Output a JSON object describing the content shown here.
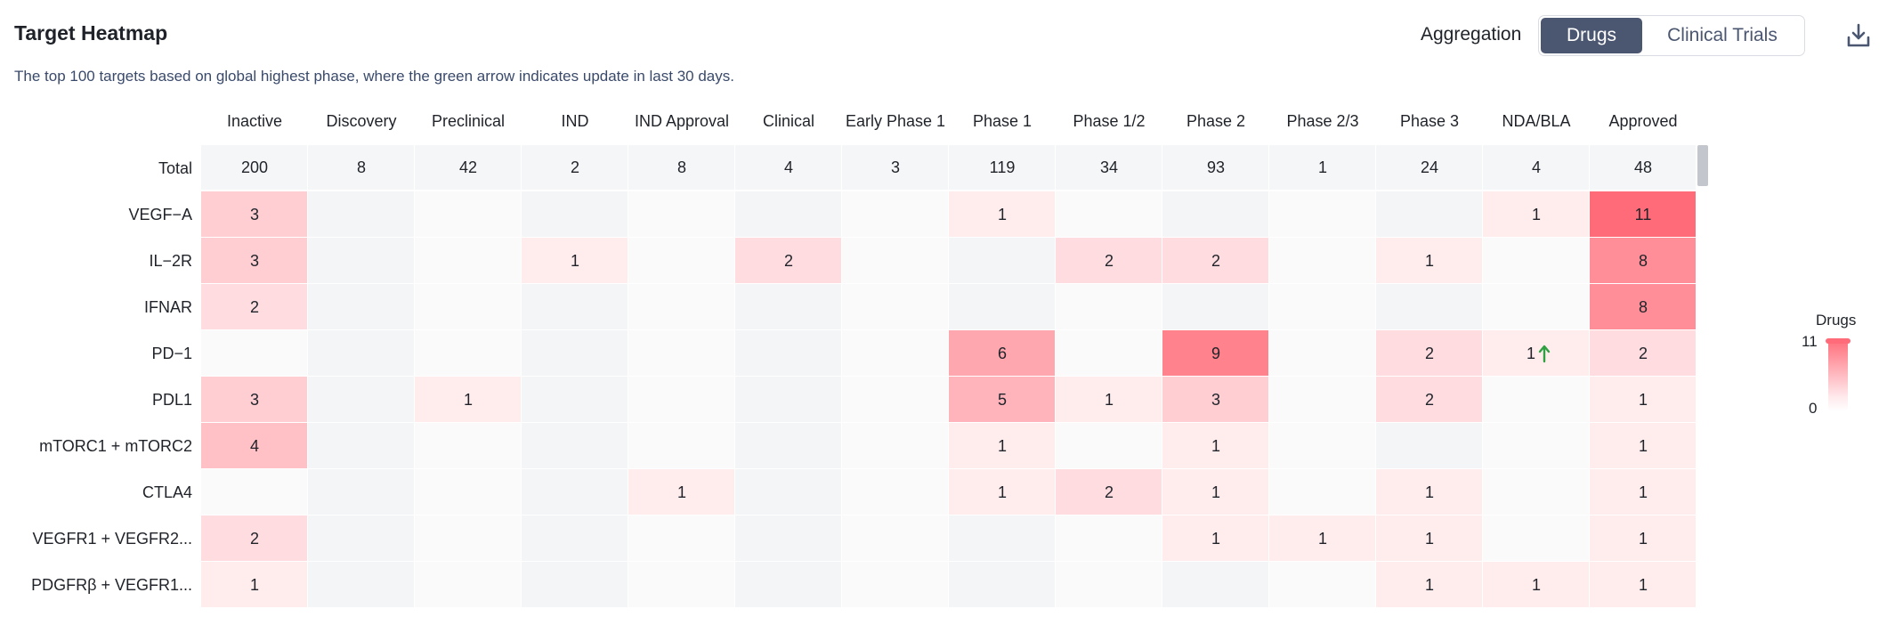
{
  "header": {
    "title": "Target Heatmap",
    "subtitle": "The top 100 targets based on global highest phase, where the green arrow indicates update in last 30 days.",
    "aggregation_label": "Aggregation",
    "tabs": [
      {
        "label": "Drugs",
        "active": true
      },
      {
        "label": "Clinical Trials",
        "active": false
      }
    ],
    "download_icon": "download-icon"
  },
  "chart_data": {
    "type": "heatmap",
    "title": "Target Heatmap",
    "columns": [
      "Inactive",
      "Discovery",
      "Preclinical",
      "IND",
      "IND Approval",
      "Clinical",
      "Early Phase 1",
      "Phase 1",
      "Phase 1/2",
      "Phase 2",
      "Phase 2/3",
      "Phase 3",
      "NDA/BLA",
      "Approved"
    ],
    "total_label": "Total",
    "totals": [
      200,
      8,
      42,
      2,
      8,
      4,
      3,
      119,
      34,
      93,
      1,
      24,
      4,
      48
    ],
    "rows": [
      {
        "name": "VEGF−A",
        "values": [
          3,
          null,
          null,
          null,
          null,
          null,
          null,
          1,
          null,
          null,
          null,
          null,
          1,
          11
        ]
      },
      {
        "name": "IL−2R",
        "values": [
          3,
          null,
          null,
          1,
          null,
          2,
          null,
          null,
          2,
          2,
          null,
          1,
          null,
          8
        ]
      },
      {
        "name": "IFNAR",
        "values": [
          2,
          null,
          null,
          null,
          null,
          null,
          null,
          null,
          null,
          null,
          null,
          null,
          null,
          8
        ]
      },
      {
        "name": "PD−1",
        "values": [
          null,
          null,
          null,
          null,
          null,
          null,
          null,
          6,
          null,
          9,
          null,
          2,
          1,
          2
        ],
        "updated": [
          false,
          false,
          false,
          false,
          false,
          false,
          false,
          false,
          false,
          false,
          false,
          false,
          true,
          false
        ]
      },
      {
        "name": "PDL1",
        "values": [
          3,
          null,
          1,
          null,
          null,
          null,
          null,
          5,
          1,
          3,
          null,
          2,
          null,
          1
        ]
      },
      {
        "name": "mTORC1 + mTORC2",
        "values": [
          4,
          null,
          null,
          null,
          null,
          null,
          null,
          1,
          null,
          1,
          null,
          null,
          null,
          1
        ]
      },
      {
        "name": "CTLA4",
        "values": [
          null,
          null,
          null,
          null,
          1,
          null,
          null,
          1,
          2,
          1,
          null,
          1,
          null,
          1
        ]
      },
      {
        "name": "VEGFR1 + VEGFR2...",
        "values": [
          2,
          null,
          null,
          null,
          null,
          null,
          null,
          null,
          null,
          1,
          1,
          1,
          null,
          1
        ]
      },
      {
        "name": "PDGFRβ + VEGFR1...",
        "values": [
          1,
          null,
          null,
          null,
          null,
          null,
          null,
          null,
          null,
          null,
          null,
          1,
          1,
          1
        ]
      }
    ],
    "legend": {
      "title": "Drugs",
      "min": 0,
      "max": 11,
      "placement": "right"
    },
    "colors": {
      "max": "#ff6b78",
      "min": "#ffffff",
      "update_arrow": "#2ea043",
      "total_row_bg": "#f5f6f8"
    }
  }
}
